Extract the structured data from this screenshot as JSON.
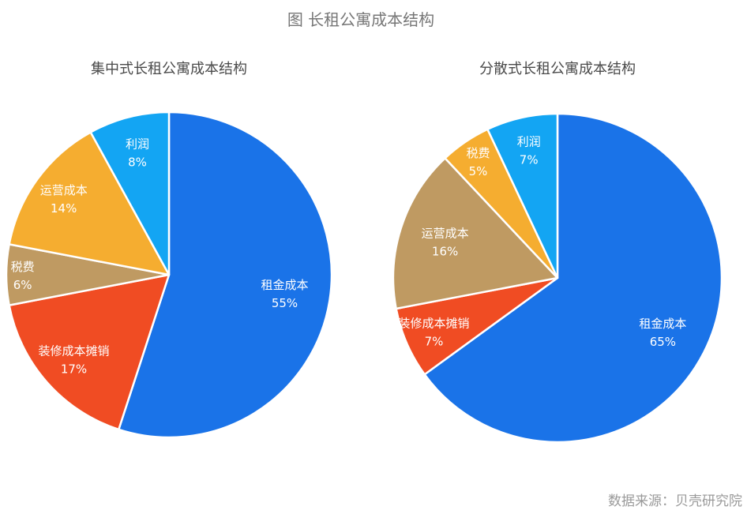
{
  "title": "图 长租公寓成本结构",
  "source": "数据来源：贝壳研究院",
  "chart_data": [
    {
      "type": "pie",
      "title": "集中式长租公寓成本结构",
      "slices": [
        {
          "label": "租金成本",
          "value": 55,
          "display": "55%",
          "color": "#1a73e8"
        },
        {
          "label": "装修成本摊销",
          "value": 17,
          "display": "17%",
          "color": "#f04c23"
        },
        {
          "label": "税费",
          "value": 6,
          "display": "6%",
          "color": "#bf9a62"
        },
        {
          "label": "运营成本",
          "value": 14,
          "display": "14%",
          "color": "#f5ad30"
        },
        {
          "label": "利润",
          "value": 8,
          "display": "8%",
          "color": "#13a5f3"
        }
      ],
      "start_angle": "12 o'clock",
      "direction": "clockwise"
    },
    {
      "type": "pie",
      "title": "分散式长租公寓成本结构",
      "slices": [
        {
          "label": "租金成本",
          "value": 65,
          "display": "65%",
          "color": "#1a73e8"
        },
        {
          "label": "装修成本摊销",
          "value": 7,
          "display": "7%",
          "color": "#f04c23"
        },
        {
          "label": "运营成本",
          "value": 16,
          "display": "16%",
          "color": "#bf9a62"
        },
        {
          "label": "税费",
          "value": 5,
          "display": "5%",
          "color": "#f5ad30"
        },
        {
          "label": "利润",
          "value": 7,
          "display": "7%",
          "color": "#13a5f3"
        }
      ],
      "start_angle": "12 o'clock",
      "direction": "clockwise"
    }
  ]
}
